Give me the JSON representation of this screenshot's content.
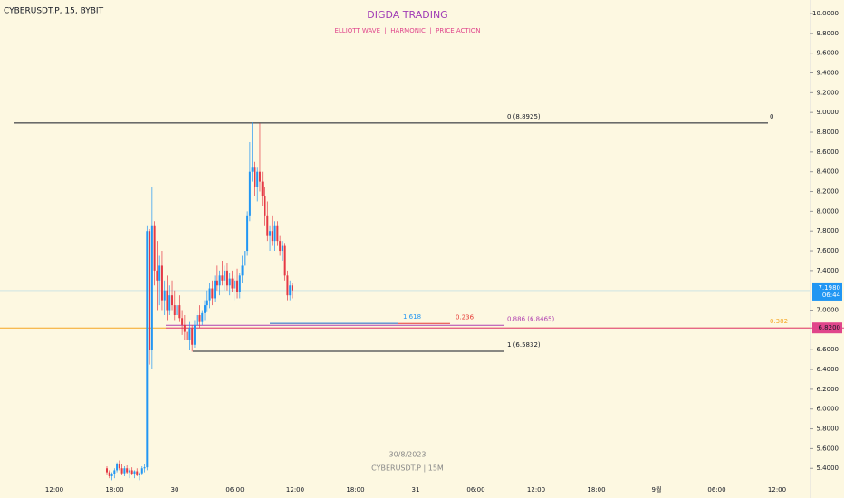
{
  "chart_data": {
    "type": "candlestick",
    "symbol": "CYBERUSDT.P, 15, BYBIT",
    "title": "DIGDA TRADING",
    "subtitle": "ELLIOTT WAVE  |  HARMONIC  |  PRICE ACTION",
    "watermark_date": "30/8/2023",
    "watermark_symbol": "CYBERUSDT.P | 15M",
    "up_color": "#2196f3",
    "down_color": "#e53945",
    "ylim": [
      5.1,
      10.0
    ],
    "yticks": [
      {
        "value": 10.0,
        "label": "10.0000"
      },
      {
        "value": 9.8,
        "label": "9.8000"
      },
      {
        "value": 9.6,
        "label": "9.6000"
      },
      {
        "value": 9.4,
        "label": "9.4000"
      },
      {
        "value": 9.2,
        "label": "9.2000"
      },
      {
        "value": 9.0,
        "label": "9.0000"
      },
      {
        "value": 8.8,
        "label": "8.8000"
      },
      {
        "value": 8.6,
        "label": "8.6000"
      },
      {
        "value": 8.4,
        "label": "8.4000"
      },
      {
        "value": 8.2,
        "label": "8.2000"
      },
      {
        "value": 8.0,
        "label": "8.0000"
      },
      {
        "value": 7.8,
        "label": "7.8000"
      },
      {
        "value": 7.6,
        "label": "7.6000"
      },
      {
        "value": 7.4,
        "label": "7.4000"
      },
      {
        "value": 7.0,
        "label": "7.0000"
      },
      {
        "value": 6.6,
        "label": "6.6000"
      },
      {
        "value": 6.4,
        "label": "6.4000"
      },
      {
        "value": 6.2,
        "label": "6.2000"
      },
      {
        "value": 6.0,
        "label": "6.0000"
      },
      {
        "value": 5.8,
        "label": "5.8000"
      },
      {
        "value": 5.6,
        "label": "5.6000"
      },
      {
        "value": 5.4,
        "label": "5.4000"
      }
    ],
    "xtick_labels": [
      "12:00",
      "18:00",
      "30",
      "06:00",
      "12:00",
      "18:00",
      "31",
      "06:00",
      "12:00",
      "18:00",
      "9월",
      "06:00",
      "12:00"
    ],
    "current_price": {
      "value": 7.198,
      "label": "7.1980",
      "countdown": "06:44",
      "color": "#2196f3"
    },
    "marked_price": {
      "value": 6.82,
      "label": "6.8200",
      "color": "#e0458b"
    },
    "levels": [
      {
        "label": "0 (8.8925)",
        "end_label": "0",
        "value": 8.8925,
        "color": "#131722"
      },
      {
        "label": "1 (6.5832)",
        "value": 6.5832,
        "color": "#131722"
      },
      {
        "label": "0.886 (6.8465)",
        "value": 6.8465,
        "color": "#b03fb0"
      },
      {
        "label": "0.236",
        "value": 6.865,
        "color": "#e53935"
      },
      {
        "label": "1.618",
        "value": 6.866,
        "color": "#2196f3"
      },
      {
        "label": "0.382",
        "value": 6.82,
        "color": "#f5a623"
      }
    ],
    "candles": [
      [
        5.4,
        5.42,
        5.33,
        5.36
      ],
      [
        5.36,
        5.38,
        5.3,
        5.32
      ],
      [
        5.32,
        5.36,
        5.28,
        5.34
      ],
      [
        5.34,
        5.4,
        5.3,
        5.38
      ],
      [
        5.38,
        5.46,
        5.36,
        5.44
      ],
      [
        5.44,
        5.48,
        5.38,
        5.4
      ],
      [
        5.4,
        5.44,
        5.33,
        5.35
      ],
      [
        5.35,
        5.42,
        5.32,
        5.4
      ],
      [
        5.4,
        5.43,
        5.34,
        5.36
      ],
      [
        5.36,
        5.4,
        5.3,
        5.38
      ],
      [
        5.38,
        5.41,
        5.33,
        5.34
      ],
      [
        5.34,
        5.38,
        5.3,
        5.37
      ],
      [
        5.37,
        5.4,
        5.32,
        5.33
      ],
      [
        5.33,
        5.36,
        5.28,
        5.35
      ],
      [
        5.35,
        5.42,
        5.33,
        5.4
      ],
      [
        5.4,
        5.44,
        5.36,
        5.41
      ],
      [
        5.41,
        7.85,
        5.38,
        7.8
      ],
      [
        7.8,
        7.82,
        6.45,
        6.6
      ],
      [
        6.6,
        8.25,
        6.4,
        7.85
      ],
      [
        7.85,
        7.9,
        7.25,
        7.4
      ],
      [
        7.4,
        7.7,
        7.0,
        7.3
      ],
      [
        7.3,
        7.55,
        7.05,
        7.45
      ],
      [
        7.45,
        7.6,
        7.0,
        7.1
      ],
      [
        7.1,
        7.3,
        6.95,
        7.2
      ],
      [
        7.2,
        7.35,
        6.9,
        7.0
      ],
      [
        7.0,
        7.25,
        6.95,
        7.15
      ],
      [
        7.15,
        7.3,
        7.0,
        7.05
      ],
      [
        7.05,
        7.2,
        6.9,
        6.95
      ],
      [
        6.95,
        7.1,
        6.85,
        7.05
      ],
      [
        7.05,
        7.15,
        6.88,
        6.92
      ],
      [
        6.92,
        7.0,
        6.75,
        6.85
      ],
      [
        6.85,
        6.95,
        6.7,
        6.78
      ],
      [
        6.78,
        6.9,
        6.62,
        6.7
      ],
      [
        6.7,
        6.88,
        6.6,
        6.82
      ],
      [
        6.82,
        6.85,
        6.58,
        6.65
      ],
      [
        6.65,
        6.9,
        6.62,
        6.85
      ],
      [
        6.85,
        7.0,
        6.8,
        6.95
      ],
      [
        6.95,
        7.05,
        6.82,
        6.88
      ],
      [
        6.88,
        7.0,
        6.85,
        6.97
      ],
      [
        6.97,
        7.1,
        6.9,
        7.05
      ],
      [
        7.05,
        7.2,
        6.98,
        7.1
      ],
      [
        7.1,
        7.28,
        7.02,
        7.22
      ],
      [
        7.22,
        7.3,
        7.05,
        7.12
      ],
      [
        7.12,
        7.35,
        7.08,
        7.3
      ],
      [
        7.3,
        7.45,
        7.2,
        7.25
      ],
      [
        7.25,
        7.4,
        7.15,
        7.35
      ],
      [
        7.35,
        7.5,
        7.25,
        7.3
      ],
      [
        7.3,
        7.45,
        7.2,
        7.4
      ],
      [
        7.4,
        7.48,
        7.2,
        7.25
      ],
      [
        7.25,
        7.38,
        7.15,
        7.32
      ],
      [
        7.32,
        7.4,
        7.18,
        7.22
      ],
      [
        7.22,
        7.35,
        7.1,
        7.3
      ],
      [
        7.3,
        7.42,
        7.12,
        7.18
      ],
      [
        7.18,
        7.38,
        7.12,
        7.35
      ],
      [
        7.35,
        7.55,
        7.28,
        7.45
      ],
      [
        7.45,
        7.7,
        7.38,
        7.6
      ],
      [
        7.6,
        8.0,
        7.55,
        7.95
      ],
      [
        7.95,
        8.7,
        7.9,
        8.4
      ],
      [
        8.4,
        8.9,
        8.3,
        8.45
      ],
      [
        8.45,
        8.5,
        8.15,
        8.25
      ],
      [
        8.25,
        8.45,
        8.1,
        8.4
      ],
      [
        8.4,
        8.89,
        8.2,
        8.3
      ],
      [
        8.3,
        8.4,
        8.05,
        8.15
      ],
      [
        8.15,
        8.25,
        7.85,
        7.95
      ],
      [
        7.95,
        8.1,
        7.7,
        7.75
      ],
      [
        7.75,
        7.85,
        7.6,
        7.8
      ],
      [
        7.8,
        7.95,
        7.65,
        7.7
      ],
      [
        7.7,
        7.9,
        7.6,
        7.85
      ],
      [
        7.85,
        7.9,
        7.65,
        7.7
      ],
      [
        7.7,
        7.75,
        7.55,
        7.6
      ],
      [
        7.6,
        7.7,
        7.5,
        7.65
      ],
      [
        7.65,
        7.68,
        7.3,
        7.35
      ],
      [
        7.35,
        7.4,
        7.1,
        7.15
      ],
      [
        7.15,
        7.3,
        7.1,
        7.25
      ],
      [
        7.25,
        7.28,
        7.12,
        7.2
      ]
    ]
  }
}
